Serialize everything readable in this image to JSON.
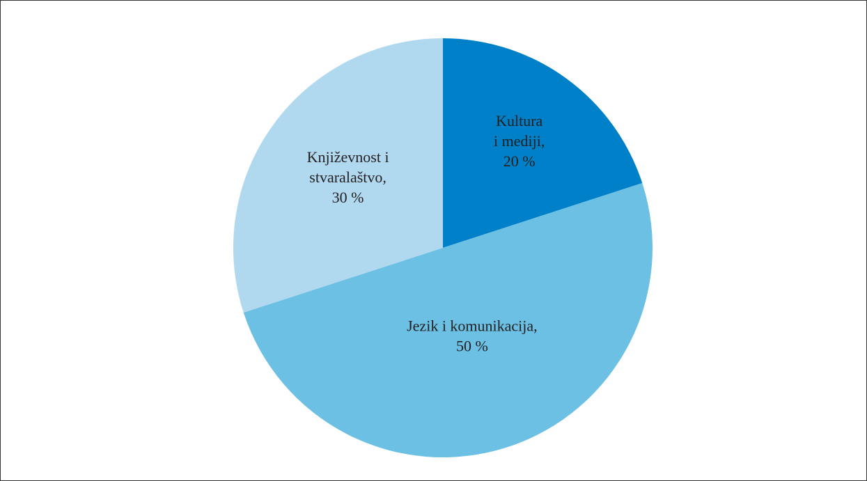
{
  "chart_data": {
    "type": "pie",
    "title": "",
    "slices": [
      {
        "label_lines": [
          "Kultura",
          "i mediji,"
        ],
        "percent_label": "20 %",
        "value": 20,
        "color": "#0080c8"
      },
      {
        "label_lines": [
          "Jezik i komunikacija,"
        ],
        "percent_label": "50 %",
        "value": 50,
        "color": "#6bc0e4"
      },
      {
        "label_lines": [
          "Književnost i",
          "stvaralaštvo,"
        ],
        "percent_label": "30 %",
        "value": 30,
        "color": "#b0d8ef"
      }
    ],
    "start_angle": "12 o'clock",
    "direction": "clockwise",
    "legend": "none"
  }
}
